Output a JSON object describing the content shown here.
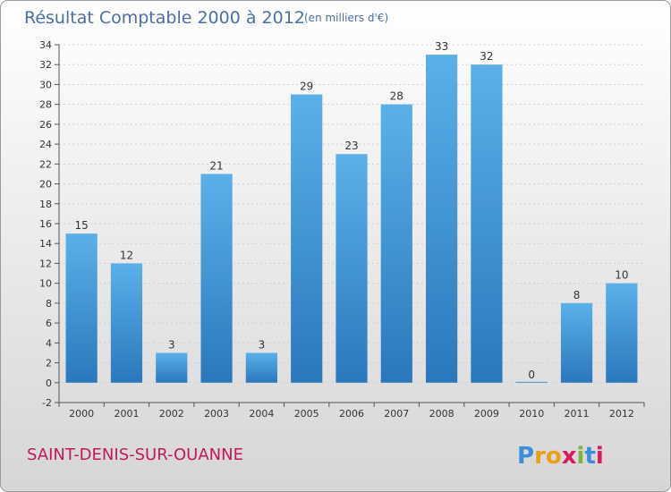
{
  "chart_data": {
    "type": "bar",
    "title": "Résultat Comptable 2000 à 2012",
    "subtitle": "(en milliers d'€)",
    "categories": [
      "2000",
      "2001",
      "2002",
      "2003",
      "2004",
      "2005",
      "2006",
      "2007",
      "2008",
      "2009",
      "2010",
      "2011",
      "2012"
    ],
    "values": [
      15,
      12,
      3,
      21,
      3,
      29,
      23,
      28,
      33,
      32,
      0,
      8,
      10
    ],
    "ylim": [
      -2,
      34
    ],
    "yticks": [
      -2,
      0,
      2,
      4,
      6,
      8,
      10,
      12,
      14,
      16,
      18,
      20,
      22,
      24,
      26,
      28,
      30,
      32,
      34
    ],
    "xlabel": "",
    "ylabel": "",
    "grid": true
  },
  "footer": {
    "place_name": "SAINT-DENIS-SUR-OUANNE",
    "brand": "Proxiti"
  },
  "colors": {
    "title": "#4a6fa5",
    "place": "#c2185b",
    "bar_light": "#5aade6",
    "bar_dark": "#2a7bbf",
    "background_top": "#ffffff",
    "background_bottom": "#d8d8d8"
  }
}
